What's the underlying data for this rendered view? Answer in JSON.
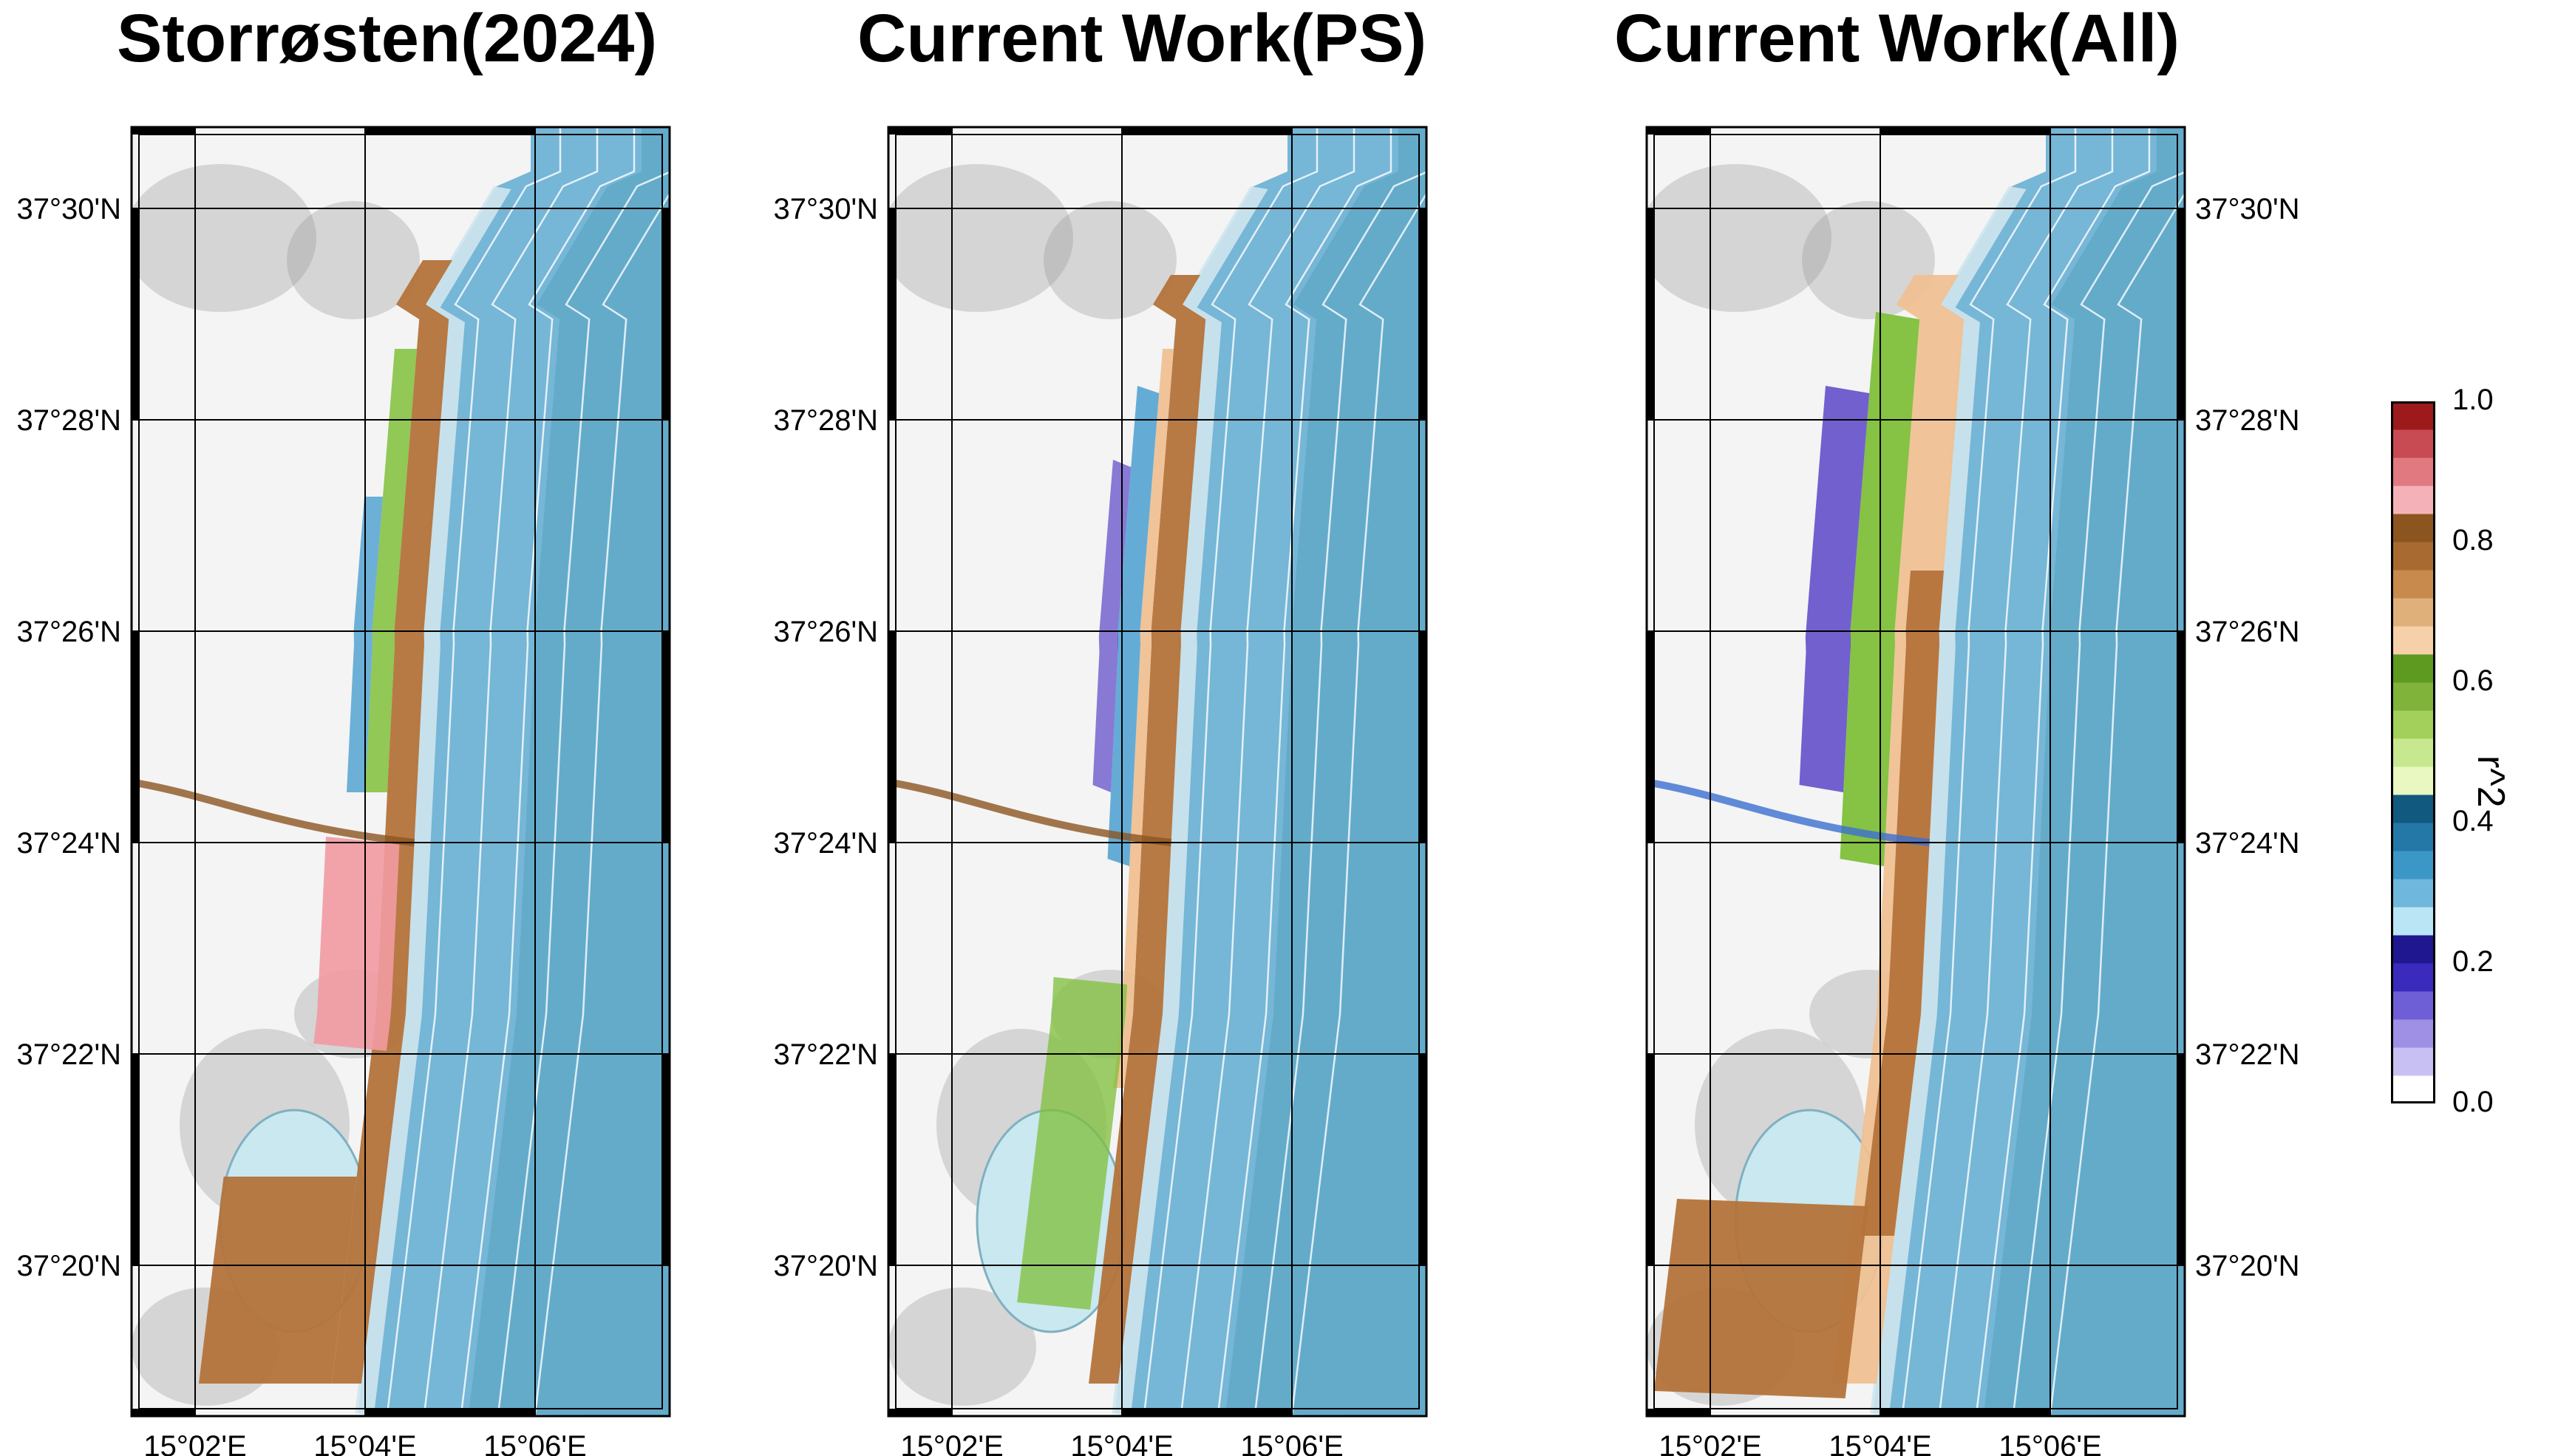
{
  "panels": [
    {
      "title": "Storrøsten(2024)",
      "variant": "storrosten"
    },
    {
      "title": "Current Work(PS)",
      "variant": "ps"
    },
    {
      "title": "Current Work(All)",
      "variant": "all"
    }
  ],
  "lat_labels": [
    "37°30'N",
    "37°28'N",
    "37°26'N",
    "37°24'N",
    "37°22'N",
    "37°20'N"
  ],
  "lon_labels": [
    "15°02'E",
    "15°04'E",
    "15°06'E"
  ],
  "colorbar": {
    "label": "r^2",
    "ticks": [
      "0.0",
      "0.2",
      "0.4",
      "0.6",
      "0.8",
      "1.0"
    ],
    "colors": [
      "#ffffff",
      "#c8c0f2",
      "#9f90e6",
      "#6f5fd6",
      "#3a2bbd",
      "#1e178f",
      "#b9e5f5",
      "#6fb7dc",
      "#3b97c6",
      "#2378a8",
      "#12597f",
      "#e8f8c0",
      "#c8e890",
      "#a2d05a",
      "#7fb33a",
      "#5e9a20",
      "#f5d0a8",
      "#e0b07a",
      "#c98a4e",
      "#a86a30",
      "#8c5520",
      "#f4b2b8",
      "#e07a80",
      "#c84a52",
      "#9c1a1a"
    ]
  },
  "colors": {
    "sea": "#76b6d6",
    "sea_deep": "#2e8aa9",
    "terrain": "#f4f4f4",
    "terrain_shade": "#9a9a9a",
    "lagoon": "#c9e8f0"
  }
}
